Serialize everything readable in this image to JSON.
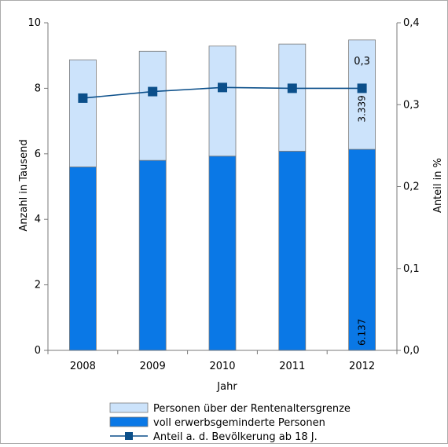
{
  "chart_data": {
    "type": "bar",
    "stacked": true,
    "categories": [
      "2008",
      "2009",
      "2010",
      "2011",
      "2012"
    ],
    "series": [
      {
        "name": "voll erwerbsgeminderte Personen",
        "axis": "left",
        "values": [
          5.6,
          5.8,
          5.93,
          6.08,
          6.137
        ],
        "color": "#0a78e6"
      },
      {
        "name": "Personen über der Rentenaltersgrenze",
        "axis": "left",
        "values": [
          3.27,
          3.33,
          3.36,
          3.27,
          3.339
        ],
        "color": "#cce3fb"
      },
      {
        "name": "Anteil a. d. Bevölkerung ab 18 J.",
        "type": "line",
        "axis": "right",
        "values": [
          0.308,
          0.316,
          0.321,
          0.32,
          0.32
        ],
        "color": "#0b4f8a"
      }
    ],
    "annotations": [
      {
        "category": "2012",
        "series": "voll erwerbsgeminderte Personen",
        "text": "6.137",
        "rotated": true
      },
      {
        "category": "2012",
        "series": "Personen über der Rentenaltersgrenze",
        "text": "3.339",
        "rotated": true
      },
      {
        "category": "2012",
        "series": "Personen über der Rentenaltersgrenze",
        "text": "0,3",
        "rotated": false
      }
    ],
    "xlabel": "Jahr",
    "ylabel": "Anzahl in Tausend",
    "ylabel_right": "Anteil in %",
    "ylim": [
      0,
      10
    ],
    "ylim_right": [
      0,
      0.4
    ],
    "yticks": [
      {
        "value": 0,
        "label": "0"
      },
      {
        "value": 2,
        "label": "2"
      },
      {
        "value": 4,
        "label": "4"
      },
      {
        "value": 6,
        "label": "6"
      },
      {
        "value": 8,
        "label": "8"
      },
      {
        "value": 10,
        "label": "10"
      }
    ],
    "yticks_right": [
      {
        "value": 0,
        "label": "0,0"
      },
      {
        "value": 0.1,
        "label": "0,1"
      },
      {
        "value": 0.2,
        "label": "0,2"
      },
      {
        "value": 0.3,
        "label": "0,3"
      },
      {
        "value": 0.4,
        "label": "0,4"
      }
    ],
    "grid": false,
    "legend_position": "bottom"
  }
}
